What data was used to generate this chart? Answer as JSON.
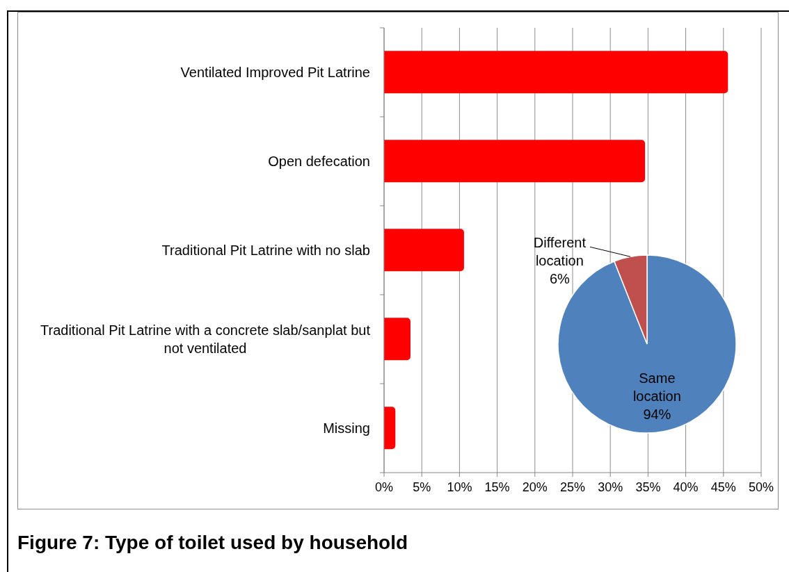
{
  "chart_data": [
    {
      "type": "bar",
      "orientation": "horizontal",
      "title": "Figure 7: Type of toilet used by household",
      "categories": [
        "Ventilated Improved Pit Latrine",
        "Open defecation",
        "Traditional Pit Latrine with no slab",
        "Traditional Pit Latrine with a concrete slab/sanplat but not ventilated",
        "Missing"
      ],
      "values": [
        45.6,
        34.6,
        10.6,
        3.5,
        1.5
      ],
      "color": "#ff0000",
      "xlim": [
        0,
        50
      ],
      "xticks": [
        {
          "value": 0,
          "label": "0%"
        },
        {
          "value": 5,
          "label": "5%"
        },
        {
          "value": 10,
          "label": "10%"
        },
        {
          "value": 15,
          "label": "15%"
        },
        {
          "value": 20,
          "label": "20%"
        },
        {
          "value": 25,
          "label": "25%"
        },
        {
          "value": 30,
          "label": "30%"
        },
        {
          "value": 35,
          "label": "35%"
        },
        {
          "value": 40,
          "label": "40%"
        },
        {
          "value": 45,
          "label": "45%"
        },
        {
          "value": 50,
          "label": "50%"
        }
      ],
      "grid": "x"
    },
    {
      "type": "pie",
      "categories": [
        "Same location",
        "Different location"
      ],
      "values": [
        94,
        6
      ],
      "colors": [
        "#4f81bd",
        "#c0504d"
      ],
      "value_labels": [
        "94%",
        "6%"
      ]
    }
  ]
}
